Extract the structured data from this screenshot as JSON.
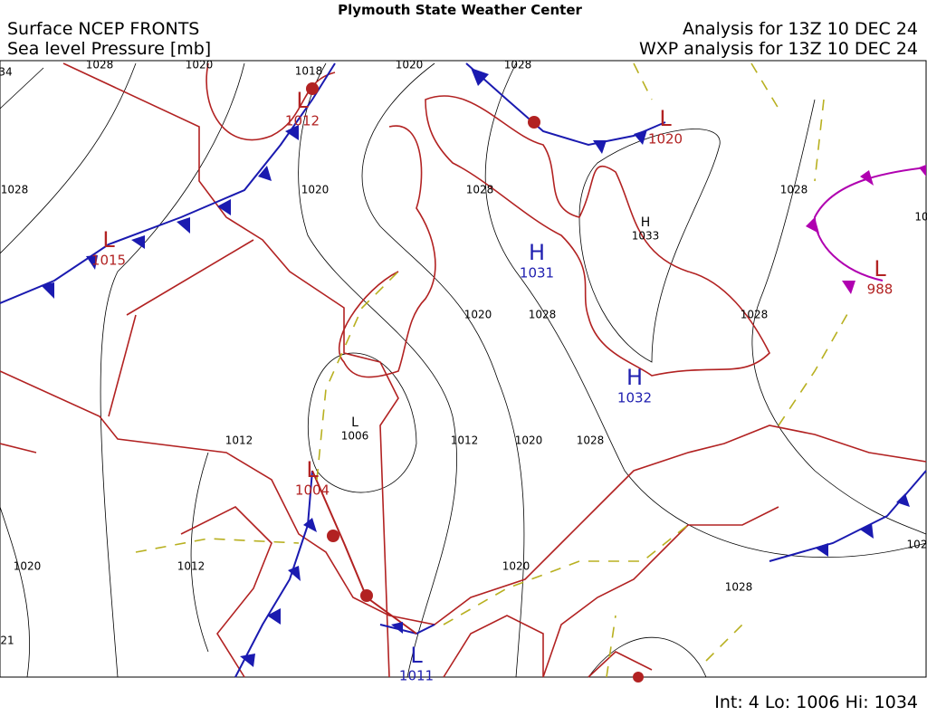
{
  "header": {
    "title": "Plymouth State Weather Center",
    "left_line1": "Surface NCEP FRONTS",
    "left_line2": "Sea level Pressure [mb]",
    "right_line1": "Analysis for 13Z 10 DEC 24",
    "right_line2": "WXP analysis for 13Z 10 DEC 24"
  },
  "centers": [
    {
      "symbol": "L",
      "value": 1012,
      "color": "#b22222"
    },
    {
      "symbol": "L",
      "value": 1015,
      "color": "#b22222"
    },
    {
      "symbol": "L",
      "value": 1020,
      "color": "#b22222"
    },
    {
      "symbol": "H",
      "value": 1031,
      "color": "#2020b0"
    },
    {
      "symbol": "H",
      "value": 1033,
      "color": "#000000"
    },
    {
      "symbol": "L",
      "value": 988,
      "color": "#b22222"
    },
    {
      "symbol": "H",
      "value": 1032,
      "color": "#2020b0"
    },
    {
      "symbol": "L",
      "value": 1006,
      "color": "#000000"
    },
    {
      "symbol": "L",
      "value": 1004,
      "color": "#b22222"
    },
    {
      "symbol": "L",
      "value": 1011,
      "color": "#2020b0"
    }
  ],
  "isobar_labels": [
    "34",
    "1028",
    "1020",
    "1018",
    "1020",
    "1028",
    "1028",
    "1020",
    "1028",
    "1028",
    "10",
    "1020",
    "1028",
    "1028",
    "1012",
    "1012",
    "1020",
    "1028",
    "1020",
    "1012",
    "1020",
    "1028",
    "102",
    "21"
  ],
  "footer": "Int: 4 Lo: 1006 Hi: 1034"
}
